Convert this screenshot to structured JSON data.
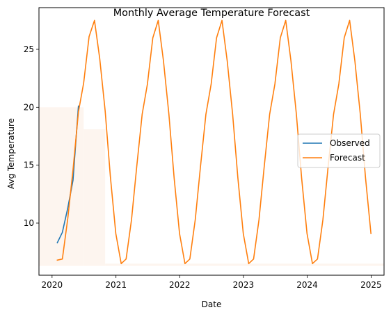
{
  "colors": {
    "observed": "#1f77b4",
    "forecast": "#ff7f0e",
    "background_band": "#fdf5ef",
    "axes": "#000000",
    "background": "#ffffff"
  },
  "chart_data": {
    "type": "line",
    "title": "Monthly Average Temperature Forecast",
    "xlabel": "Date",
    "ylabel": "Avg Temperature",
    "x_axis_type": "date",
    "xlim": [
      "2019-10-18",
      "2025-03-16"
    ],
    "ylim": [
      5.5,
      28.6
    ],
    "x_ticks": [
      {
        "date": "2020-01-01",
        "label": "2020"
      },
      {
        "date": "2021-01-01",
        "label": "2021"
      },
      {
        "date": "2022-01-01",
        "label": "2022"
      },
      {
        "date": "2023-01-01",
        "label": "2023"
      },
      {
        "date": "2024-01-01",
        "label": "2024"
      },
      {
        "date": "2025-01-01",
        "label": "2025"
      }
    ],
    "y_ticks": [
      10,
      15,
      20,
      25
    ],
    "grid": false,
    "legend_position": "center-right",
    "shaded_regions": [
      {
        "x_start": "2019-10-18",
        "x_end": "2020-06-30",
        "y_bottom": 6.3,
        "y_top": 20.0
      },
      {
        "x_start": "2020-06-30",
        "x_end": "2020-10-31",
        "y_bottom": 6.3,
        "y_top": 18.1
      },
      {
        "x_start": "2020-10-31",
        "x_end": "2025-03-16",
        "y_bottom": 6.3,
        "y_top": 6.5
      }
    ],
    "series": [
      {
        "name": "Observed",
        "color_key": "observed",
        "x": [
          "2020-01-31",
          "2020-02-29",
          "2020-03-31",
          "2020-04-30",
          "2020-05-31"
        ],
        "y": [
          8.3,
          9.2,
          11.3,
          13.7,
          20.1
        ]
      },
      {
        "name": "Forecast",
        "color_key": "forecast",
        "x": [
          "2020-01-31",
          "2020-02-29",
          "2020-03-31",
          "2020-04-30",
          "2020-05-31",
          "2020-06-30",
          "2020-07-31",
          "2020-08-31",
          "2020-09-30",
          "2020-10-31",
          "2020-11-30",
          "2020-12-31",
          "2021-01-31",
          "2021-02-28",
          "2021-03-31",
          "2021-04-30",
          "2021-05-31",
          "2021-06-30",
          "2021-07-31",
          "2021-08-31",
          "2021-09-30",
          "2021-10-31",
          "2021-11-30",
          "2021-12-31",
          "2022-01-31",
          "2022-02-28",
          "2022-03-31",
          "2022-04-30",
          "2022-05-31",
          "2022-06-30",
          "2022-07-31",
          "2022-08-31",
          "2022-09-30",
          "2022-10-31",
          "2022-11-30",
          "2022-12-31",
          "2023-01-31",
          "2023-02-28",
          "2023-03-31",
          "2023-04-30",
          "2023-05-31",
          "2023-06-30",
          "2023-07-31",
          "2023-08-31",
          "2023-09-30",
          "2023-10-31",
          "2023-11-30",
          "2023-12-31",
          "2024-01-31",
          "2024-02-29",
          "2024-03-31",
          "2024-04-30",
          "2024-05-31",
          "2024-06-30",
          "2024-07-31",
          "2024-08-31",
          "2024-09-30",
          "2024-10-31",
          "2024-11-30",
          "2024-12-31"
        ],
        "y": [
          6.8,
          6.9,
          10.4,
          14.6,
          19.6,
          22.1,
          26.1,
          27.5,
          24.2,
          19.7,
          14.0,
          9.1,
          6.5,
          6.9,
          10.3,
          14.9,
          19.4,
          22.0,
          26.0,
          27.5,
          24.0,
          19.4,
          13.9,
          9.1,
          6.5,
          6.9,
          10.3,
          14.9,
          19.4,
          22.0,
          26.0,
          27.5,
          24.0,
          19.4,
          13.9,
          9.1,
          6.5,
          6.9,
          10.3,
          14.9,
          19.4,
          22.0,
          26.0,
          27.5,
          24.0,
          19.4,
          13.9,
          9.1,
          6.5,
          6.9,
          10.3,
          14.9,
          19.4,
          22.0,
          26.0,
          27.5,
          24.0,
          19.4,
          13.9,
          9.1
        ]
      }
    ]
  }
}
